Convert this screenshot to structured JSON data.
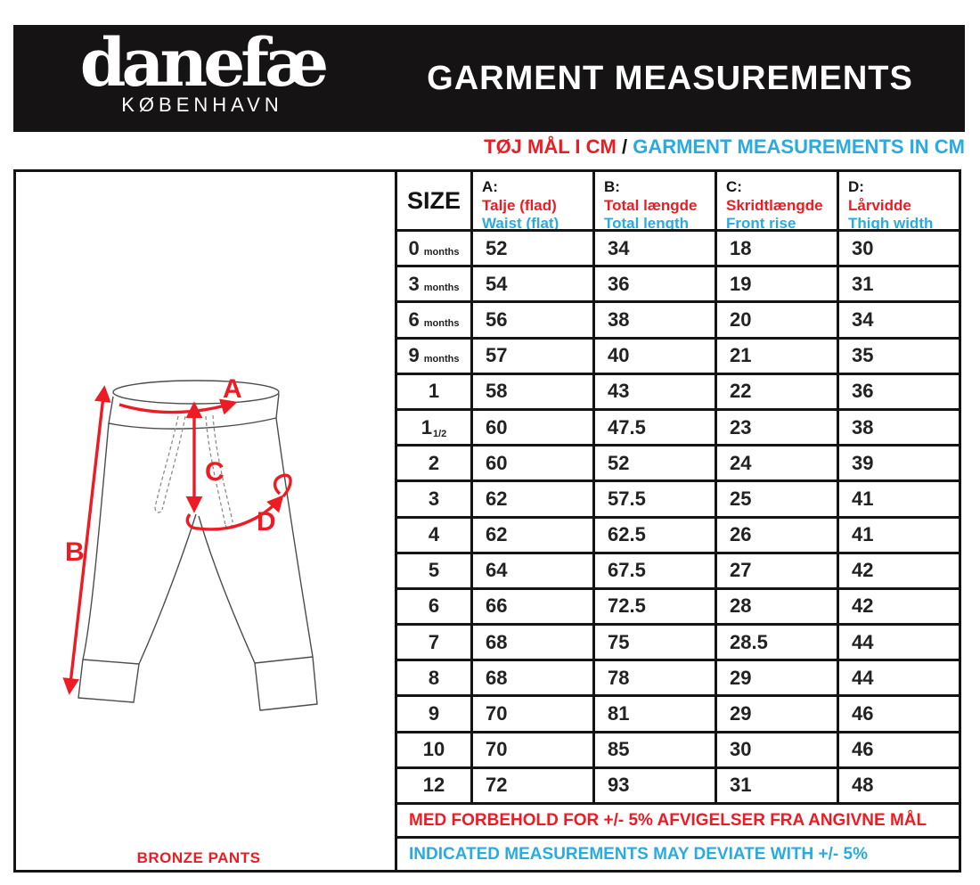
{
  "brand": {
    "logo": "danefæ",
    "city": "KØBENHAVN"
  },
  "header": {
    "title": "GARMENT MEASUREMENTS"
  },
  "subtitle": {
    "danish": "TØJ MÅL I CM",
    "separator": "/",
    "english": "GARMENT MEASUREMENTS IN CM"
  },
  "colors": {
    "red": "#ED1C24",
    "blue": "#29ABE2",
    "black": "#161314"
  },
  "diagram": {
    "labels": {
      "a": "A",
      "b": "B",
      "c": "C",
      "d": "D"
    },
    "caption": "BRONZE PANTS"
  },
  "table": {
    "size_header": "SIZE",
    "columns": [
      {
        "letter": "A:",
        "danish": "Talje (flad)",
        "english": "Waist (flat)"
      },
      {
        "letter": "B:",
        "danish": "Total længde",
        "english": "Total length"
      },
      {
        "letter": "C:",
        "danish": "Skridtlængde",
        "english": "Front rise"
      },
      {
        "letter": "D:",
        "danish": "Lårvidde",
        "english": "Thigh width"
      }
    ],
    "rows": [
      {
        "size": "0",
        "suffix": "months",
        "values": [
          "52",
          "34",
          "18",
          "30"
        ]
      },
      {
        "size": "3",
        "suffix": "months",
        "values": [
          "54",
          "36",
          "19",
          "31"
        ]
      },
      {
        "size": "6",
        "suffix": "months",
        "values": [
          "56",
          "38",
          "20",
          "34"
        ]
      },
      {
        "size": "9",
        "suffix": "months",
        "values": [
          "57",
          "40",
          "21",
          "35"
        ]
      },
      {
        "size": "1",
        "suffix": "",
        "values": [
          "58",
          "43",
          "22",
          "36"
        ]
      },
      {
        "size": "1",
        "suffix": "1/2",
        "values": [
          "60",
          "47.5",
          "23",
          "38"
        ]
      },
      {
        "size": "2",
        "suffix": "",
        "values": [
          "60",
          "52",
          "24",
          "39"
        ]
      },
      {
        "size": "3",
        "suffix": "",
        "values": [
          "62",
          "57.5",
          "25",
          "41"
        ]
      },
      {
        "size": "4",
        "suffix": "",
        "values": [
          "62",
          "62.5",
          "26",
          "41"
        ]
      },
      {
        "size": "5",
        "suffix": "",
        "values": [
          "64",
          "67.5",
          "27",
          "42"
        ]
      },
      {
        "size": "6",
        "suffix": "",
        "values": [
          "66",
          "72.5",
          "28",
          "42"
        ]
      },
      {
        "size": "7",
        "suffix": "",
        "values": [
          "68",
          "75",
          "28.5",
          "44"
        ]
      },
      {
        "size": "8",
        "suffix": "",
        "values": [
          "68",
          "78",
          "29",
          "44"
        ]
      },
      {
        "size": "9",
        "suffix": "",
        "values": [
          "70",
          "81",
          "29",
          "46"
        ]
      },
      {
        "size": "10",
        "suffix": "",
        "values": [
          "70",
          "85",
          "30",
          "46"
        ]
      },
      {
        "size": "12",
        "suffix": "",
        "values": [
          "72",
          "93",
          "31",
          "48"
        ]
      }
    ],
    "notes": {
      "danish": "MED FORBEHOLD FOR +/- 5% AFVIGELSER FRA ANGIVNE MÅL",
      "english": "INDICATED MEASUREMENTS MAY DEVIATE WITH +/- 5%"
    }
  }
}
